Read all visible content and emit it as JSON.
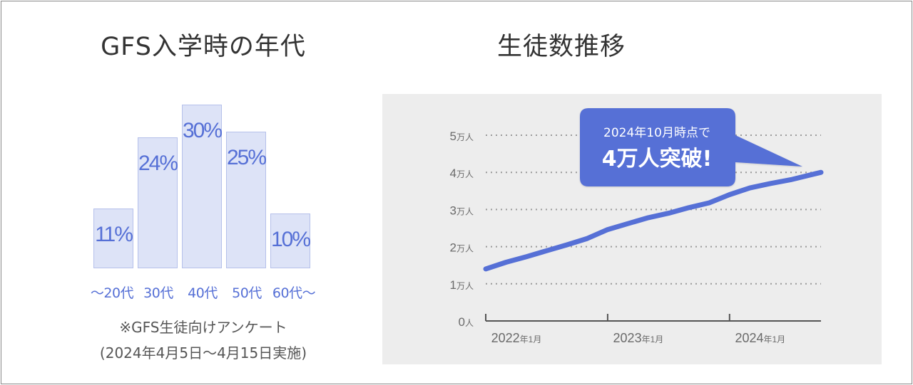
{
  "chart_data": [
    {
      "type": "bar",
      "title": "GFS入学時の年代",
      "categories": [
        "～20代",
        "30代",
        "40代",
        "50代",
        "60代～"
      ],
      "values": [
        11,
        24,
        30,
        25,
        10
      ],
      "value_labels": [
        "11%",
        "24%",
        "30%",
        "25%",
        "10%"
      ],
      "unit": "%",
      "ylim": [
        0,
        30
      ],
      "grid": false,
      "note_lines": [
        "※GFS生徒向けアンケート",
        "(2024年4月5日～4月15日実施)"
      ],
      "colors": {
        "bar_fill": "#dde3f7",
        "bar_stroke": "#b5c0ea",
        "label": "#5670d6"
      }
    },
    {
      "type": "line",
      "title": "生徒数推移",
      "x_tick_labels": [
        "2022年1月",
        "2023年1月",
        "2024年1月"
      ],
      "y_tick_labels": [
        "0人",
        "1万人",
        "2万人",
        "3万人",
        "4万人",
        "5万人"
      ],
      "ylim": [
        0,
        50000
      ],
      "xlim": [
        "2022-01",
        "2024-10"
      ],
      "grid": true,
      "series": [
        {
          "x": [
            "2022-01",
            "2022-03",
            "2022-05",
            "2022-07",
            "2022-09",
            "2022-11",
            "2023-01",
            "2023-03",
            "2023-05",
            "2023-07",
            "2023-09",
            "2023-11",
            "2024-01",
            "2024-03",
            "2024-05",
            "2024-07",
            "2024-10"
          ],
          "values": [
            14000,
            15800,
            17300,
            18900,
            20500,
            22200,
            24600,
            26200,
            27800,
            29000,
            30500,
            31800,
            34000,
            35800,
            37000,
            38000,
            40000
          ]
        }
      ],
      "annotation": {
        "line1": "2024年10月時点で",
        "line2": "4万人突破!"
      },
      "colors": {
        "line": "#5670d6",
        "panel": "#ededed",
        "callout": "#5670d6"
      }
    }
  ]
}
